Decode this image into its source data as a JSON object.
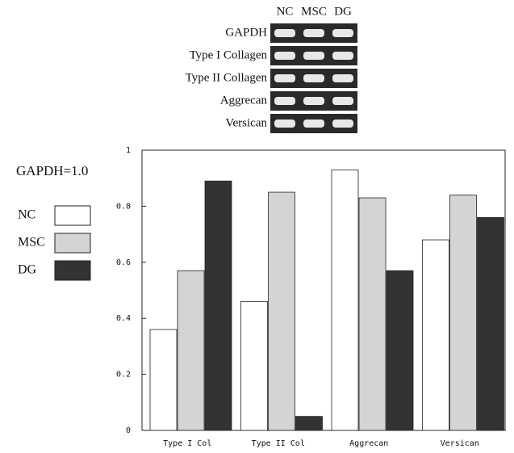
{
  "gel": {
    "lanes": [
      "NC",
      "MSC",
      "DG"
    ],
    "rows": [
      "GAPDH",
      "Type I Collagen",
      "Type II Collagen",
      "Aggrecan",
      "Versican"
    ]
  },
  "chart_data": {
    "type": "bar",
    "annotation": "GAPDH=1.0",
    "categories": [
      "Type I Col",
      "Type II Col",
      "Aggrecan",
      "Versican"
    ],
    "series": [
      {
        "name": "NC",
        "color": "#ffffff",
        "values": [
          0.36,
          0.46,
          0.93,
          0.68
        ]
      },
      {
        "name": "MSC",
        "color": "#d4d4d4",
        "values": [
          0.57,
          0.85,
          0.83,
          0.84
        ]
      },
      {
        "name": "DG",
        "color": "#333333",
        "values": [
          0.89,
          0.05,
          0.57,
          0.76
        ]
      }
    ],
    "ylim": [
      0,
      1
    ],
    "yticks": [
      0,
      0.2,
      0.4,
      0.6,
      0.8,
      1
    ]
  }
}
